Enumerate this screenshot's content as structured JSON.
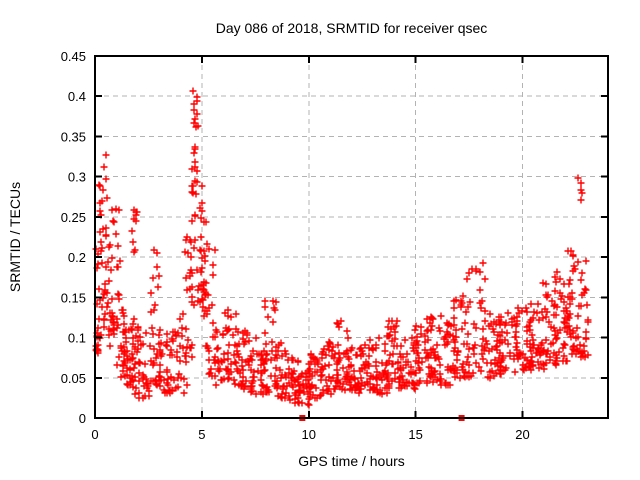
{
  "chart_data": {
    "type": "scatter",
    "title": "Day 086 of 2018, SRMTID for receiver qsec",
    "xlabel": "GPS time / hours",
    "ylabel": "SRMTID / TECUs",
    "xlim": [
      0,
      24
    ],
    "ylim": [
      0,
      0.45
    ],
    "xticks": {
      "values": [
        0,
        5,
        10,
        15,
        20
      ],
      "labels": [
        "0",
        "5",
        "10",
        "15",
        "20"
      ]
    },
    "yticks": {
      "values": [
        0,
        0.05,
        0.1,
        0.15,
        0.2,
        0.25,
        0.3,
        0.35,
        0.4,
        0.45
      ],
      "labels": [
        "0",
        "0.05",
        "0.1",
        "0.15",
        "0.2",
        "0.25",
        "0.3",
        "0.35",
        "0.4",
        "0.45"
      ]
    },
    "grid": {
      "show": true,
      "color": "#b3b3b3",
      "dash": "5,4"
    },
    "frame_color": "#000000",
    "background": "#ffffff",
    "marker": {
      "shape": "plus",
      "size": 7,
      "color": "#ff0000"
    },
    "series_name": "SRMTID",
    "seed": 20180086,
    "point_clusters": [
      [
        0.02,
        0.18,
        20,
        0.08,
        0.25,
        1.3
      ],
      [
        0.1,
        0.45,
        18,
        0.1,
        0.3,
        1.2
      ],
      [
        0.35,
        0.65,
        22,
        0.12,
        0.335,
        0.9
      ],
      [
        0.55,
        0.9,
        16,
        0.08,
        0.22,
        1.3
      ],
      [
        0.8,
        1.15,
        20,
        0.1,
        0.26,
        1.1
      ],
      [
        1.0,
        1.5,
        24,
        0.05,
        0.135,
        1.4
      ],
      [
        1.4,
        1.8,
        22,
        0.04,
        0.12,
        1.4
      ],
      [
        1.7,
        2.0,
        10,
        0.2,
        0.26,
        1.0
      ],
      [
        1.7,
        2.1,
        24,
        0.03,
        0.13,
        1.5
      ],
      [
        2.0,
        2.6,
        28,
        0.025,
        0.11,
        1.5
      ],
      [
        2.6,
        3.0,
        10,
        0.13,
        0.21,
        1.0
      ],
      [
        2.6,
        3.1,
        24,
        0.04,
        0.12,
        1.4
      ],
      [
        3.0,
        3.6,
        26,
        0.03,
        0.11,
        1.5
      ],
      [
        3.5,
        4.3,
        32,
        0.03,
        0.13,
        1.5
      ],
      [
        4.2,
        4.55,
        22,
        0.07,
        0.24,
        1.2
      ],
      [
        4.5,
        4.85,
        18,
        0.28,
        0.385,
        1.0
      ],
      [
        4.55,
        4.8,
        4,
        0.39,
        0.412,
        1.0
      ],
      [
        4.5,
        5.1,
        30,
        0.13,
        0.3,
        1.2
      ],
      [
        4.95,
        5.3,
        20,
        0.12,
        0.26,
        1.3
      ],
      [
        5.2,
        5.65,
        22,
        0.05,
        0.21,
        1.5
      ],
      [
        5.6,
        6.3,
        30,
        0.04,
        0.13,
        1.4
      ],
      [
        6.2,
        6.7,
        26,
        0.04,
        0.135,
        1.4
      ],
      [
        6.6,
        7.4,
        34,
        0.035,
        0.11,
        1.4
      ],
      [
        7.3,
        8.0,
        34,
        0.03,
        0.1,
        1.4
      ],
      [
        7.9,
        8.45,
        28,
        0.03,
        0.147,
        1.6
      ],
      [
        8.4,
        9.0,
        30,
        0.025,
        0.095,
        1.4
      ],
      [
        9.0,
        9.6,
        30,
        0.018,
        0.075,
        1.3
      ],
      [
        9.5,
        10.1,
        30,
        0.015,
        0.07,
        1.2
      ],
      [
        10.0,
        10.7,
        34,
        0.025,
        0.08,
        1.3
      ],
      [
        10.6,
        11.4,
        36,
        0.03,
        0.095,
        1.4
      ],
      [
        11.3,
        11.85,
        28,
        0.035,
        0.125,
        1.5
      ],
      [
        11.8,
        12.5,
        36,
        0.03,
        0.09,
        1.3
      ],
      [
        12.4,
        13.2,
        38,
        0.035,
        0.1,
        1.4
      ],
      [
        13.1,
        13.8,
        36,
        0.03,
        0.105,
        1.4
      ],
      [
        13.7,
        14.3,
        30,
        0.04,
        0.125,
        1.4
      ],
      [
        14.2,
        15.0,
        38,
        0.035,
        0.105,
        1.3
      ],
      [
        14.9,
        15.6,
        36,
        0.04,
        0.115,
        1.3
      ],
      [
        15.5,
        16.2,
        36,
        0.045,
        0.13,
        1.4
      ],
      [
        16.1,
        16.9,
        38,
        0.04,
        0.12,
        1.3
      ],
      [
        16.8,
        17.5,
        36,
        0.05,
        0.155,
        1.4
      ],
      [
        17.4,
        18.25,
        40,
        0.05,
        0.195,
        1.5
      ],
      [
        18.2,
        19.0,
        38,
        0.05,
        0.13,
        1.3
      ],
      [
        18.9,
        19.7,
        38,
        0.055,
        0.135,
        1.3
      ],
      [
        19.6,
        20.4,
        38,
        0.06,
        0.14,
        1.3
      ],
      [
        20.3,
        21.0,
        38,
        0.06,
        0.15,
        1.3
      ],
      [
        20.9,
        21.6,
        38,
        0.065,
        0.18,
        1.4
      ],
      [
        21.5,
        22.2,
        40,
        0.07,
        0.185,
        1.3
      ],
      [
        22.1,
        22.75,
        36,
        0.08,
        0.21,
        1.2
      ],
      [
        22.55,
        22.8,
        5,
        0.245,
        0.305,
        1.0
      ],
      [
        22.7,
        23.1,
        22,
        0.075,
        0.2,
        1.2
      ]
    ],
    "zero_points": [
      [
        9.7,
        0
      ],
      [
        17.15,
        0
      ]
    ]
  }
}
